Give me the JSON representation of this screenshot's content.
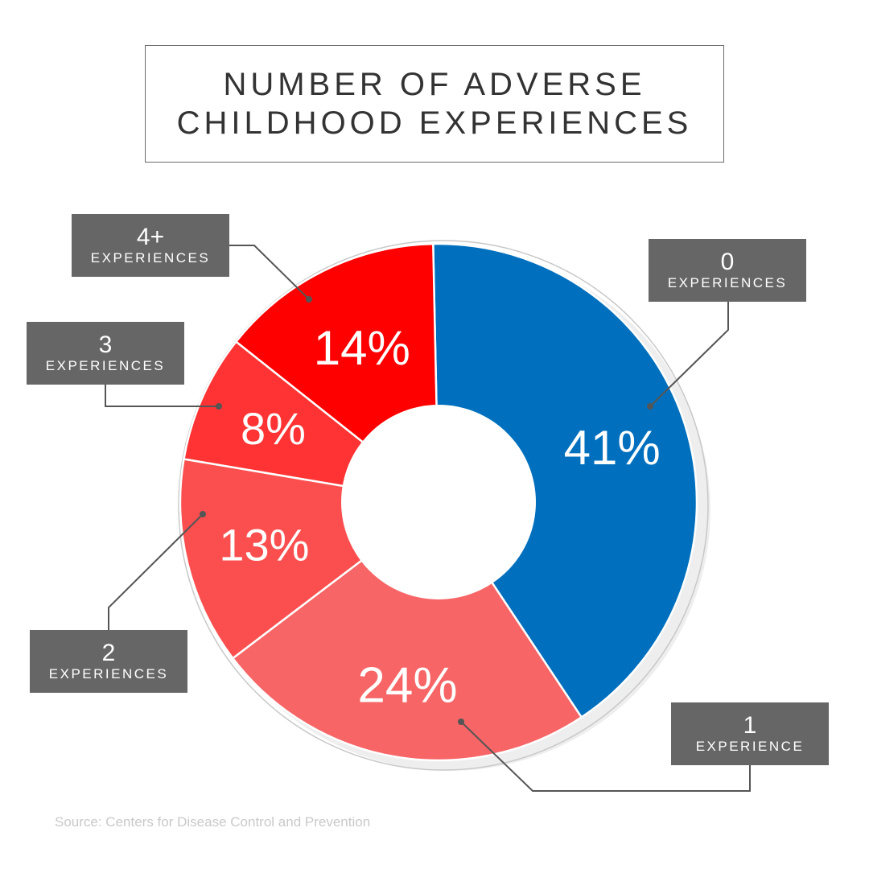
{
  "title": {
    "line1": "NUMBER OF ADVERSE",
    "line2": "CHILDHOOD EXPERIENCES"
  },
  "chart_data": {
    "type": "pie",
    "style": "donut",
    "title": "NUMBER OF ADVERSE CHILDHOOD EXPERIENCES",
    "slices": [
      {
        "label_number": "0",
        "label_word": "EXPERIENCES",
        "value": 41,
        "display": "41%",
        "color": "#0070be"
      },
      {
        "label_number": "1",
        "label_word": "EXPERIENCE",
        "value": 24,
        "display": "24%",
        "color": "#f76566"
      },
      {
        "label_number": "2",
        "label_word": "EXPERIENCES",
        "value": 13,
        "display": "13%",
        "color": "#fb4f4f"
      },
      {
        "label_number": "3",
        "label_word": "EXPERIENCES",
        "value": 8,
        "display": "8%",
        "color": "#ff3333"
      },
      {
        "label_number": "4+",
        "label_word": "EXPERIENCES",
        "value": 14,
        "display": "14%",
        "color": "#fe0000"
      }
    ],
    "legend": "callout boxes around chart"
  },
  "source": "Source: Centers for Disease Control and Prevention",
  "colors": {
    "label_box": "#666666",
    "title_text": "#333333",
    "source_text": "#c9c9c9"
  }
}
